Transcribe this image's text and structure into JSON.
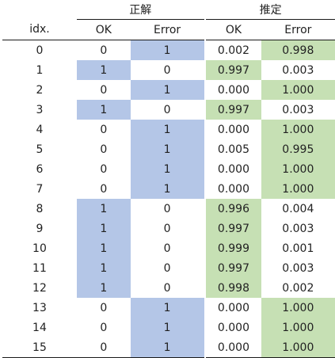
{
  "table": {
    "group_headers": {
      "ground_truth": "正解",
      "estimate": "推定"
    },
    "columns": {
      "idx": "idx.",
      "gt_ok": "OK",
      "gt_error": "Error",
      "est_ok": "OK",
      "est_error": "Error"
    },
    "highlight_colors": {
      "label_true": "#b4c6e7",
      "predicted_class": "#c6e0b4"
    },
    "rows": [
      {
        "idx": "0",
        "gt_ok": "0",
        "gt_error": "1",
        "est_ok": "0.002",
        "est_error": "0.998"
      },
      {
        "idx": "1",
        "gt_ok": "1",
        "gt_error": "0",
        "est_ok": "0.997",
        "est_error": "0.003"
      },
      {
        "idx": "2",
        "gt_ok": "0",
        "gt_error": "1",
        "est_ok": "0.000",
        "est_error": "1.000"
      },
      {
        "idx": "3",
        "gt_ok": "1",
        "gt_error": "0",
        "est_ok": "0.997",
        "est_error": "0.003"
      },
      {
        "idx": "4",
        "gt_ok": "0",
        "gt_error": "1",
        "est_ok": "0.000",
        "est_error": "1.000"
      },
      {
        "idx": "5",
        "gt_ok": "0",
        "gt_error": "1",
        "est_ok": "0.005",
        "est_error": "0.995"
      },
      {
        "idx": "6",
        "gt_ok": "0",
        "gt_error": "1",
        "est_ok": "0.000",
        "est_error": "1.000"
      },
      {
        "idx": "7",
        "gt_ok": "0",
        "gt_error": "1",
        "est_ok": "0.000",
        "est_error": "1.000"
      },
      {
        "idx": "8",
        "gt_ok": "1",
        "gt_error": "0",
        "est_ok": "0.996",
        "est_error": "0.004"
      },
      {
        "idx": "9",
        "gt_ok": "1",
        "gt_error": "0",
        "est_ok": "0.997",
        "est_error": "0.003"
      },
      {
        "idx": "10",
        "gt_ok": "1",
        "gt_error": "0",
        "est_ok": "0.999",
        "est_error": "0.001"
      },
      {
        "idx": "11",
        "gt_ok": "1",
        "gt_error": "0",
        "est_ok": "0.997",
        "est_error": "0.003"
      },
      {
        "idx": "12",
        "gt_ok": "1",
        "gt_error": "0",
        "est_ok": "0.998",
        "est_error": "0.002"
      },
      {
        "idx": "13",
        "gt_ok": "0",
        "gt_error": "1",
        "est_ok": "0.000",
        "est_error": "1.000"
      },
      {
        "idx": "14",
        "gt_ok": "0",
        "gt_error": "1",
        "est_ok": "0.000",
        "est_error": "1.000"
      },
      {
        "idx": "15",
        "gt_ok": "0",
        "gt_error": "1",
        "est_ok": "0.000",
        "est_error": "1.000"
      }
    ]
  }
}
